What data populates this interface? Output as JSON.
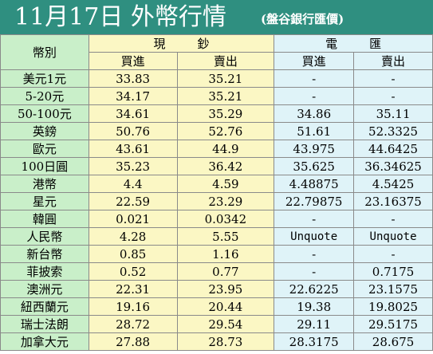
{
  "header": {
    "title": "11月17日 外幣行情",
    "subtitle": "(盤谷銀行匯價)"
  },
  "table": {
    "corner_label": "幣別",
    "groups": [
      "現鈔",
      "電匯"
    ],
    "subheaders": [
      "買進",
      "賣出",
      "買進",
      "賣出"
    ],
    "rows": [
      {
        "currency": "美元1元",
        "cash_buy": "33.83",
        "cash_sell": "35.21",
        "wire_buy": "-",
        "wire_sell": "-"
      },
      {
        "currency": "5-20元",
        "cash_buy": "34.17",
        "cash_sell": "35.21",
        "wire_buy": "-",
        "wire_sell": "-"
      },
      {
        "currency": "50-100元",
        "cash_buy": "34.61",
        "cash_sell": "35.29",
        "wire_buy": "34.86",
        "wire_sell": "35.11"
      },
      {
        "currency": "英鎊",
        "cash_buy": "50.76",
        "cash_sell": "52.76",
        "wire_buy": "51.61",
        "wire_sell": "52.3325"
      },
      {
        "currency": "歐元",
        "cash_buy": "43.61",
        "cash_sell": "44.9",
        "wire_buy": "43.975",
        "wire_sell": "44.6425"
      },
      {
        "currency": "100日圓",
        "cash_buy": "35.23",
        "cash_sell": "36.42",
        "wire_buy": "35.625",
        "wire_sell": "36.34625"
      },
      {
        "currency": "港幣",
        "cash_buy": "4.4",
        "cash_sell": "4.59",
        "wire_buy": "4.48875",
        "wire_sell": "4.5425"
      },
      {
        "currency": "星元",
        "cash_buy": "22.59",
        "cash_sell": "23.29",
        "wire_buy": "22.79875",
        "wire_sell": "23.16375"
      },
      {
        "currency": "韓圓",
        "cash_buy": "0.021",
        "cash_sell": "0.0342",
        "wire_buy": "-",
        "wire_sell": "-"
      },
      {
        "currency": "人民幣",
        "cash_buy": "4.28",
        "cash_sell": "5.55",
        "wire_buy": "Unquote",
        "wire_sell": "Unquote"
      },
      {
        "currency": "新台幣",
        "cash_buy": "0.85",
        "cash_sell": "1.16",
        "wire_buy": "-",
        "wire_sell": "-"
      },
      {
        "currency": "菲披索",
        "cash_buy": "0.52",
        "cash_sell": "0.77",
        "wire_buy": "-",
        "wire_sell": "0.7175"
      },
      {
        "currency": "澳洲元",
        "cash_buy": "22.31",
        "cash_sell": "23.95",
        "wire_buy": "22.6225",
        "wire_sell": "23.1575"
      },
      {
        "currency": "紐西蘭元",
        "cash_buy": "19.16",
        "cash_sell": "20.44",
        "wire_buy": "19.38",
        "wire_sell": "19.8025"
      },
      {
        "currency": "瑞士法朗",
        "cash_buy": "28.72",
        "cash_sell": "29.54",
        "wire_buy": "29.11",
        "wire_sell": "29.5175"
      },
      {
        "currency": "加拿大元",
        "cash_buy": "27.88",
        "cash_sell": "28.73",
        "wire_buy": "28.3175",
        "wire_sell": "28.675"
      }
    ]
  },
  "colors": {
    "header_bg": "#2f8f80",
    "label_col": "#c9efc9",
    "cash_cols": "#fbf7c4",
    "wire_cols": "#dff3f8",
    "border": "#8a8a8a"
  }
}
